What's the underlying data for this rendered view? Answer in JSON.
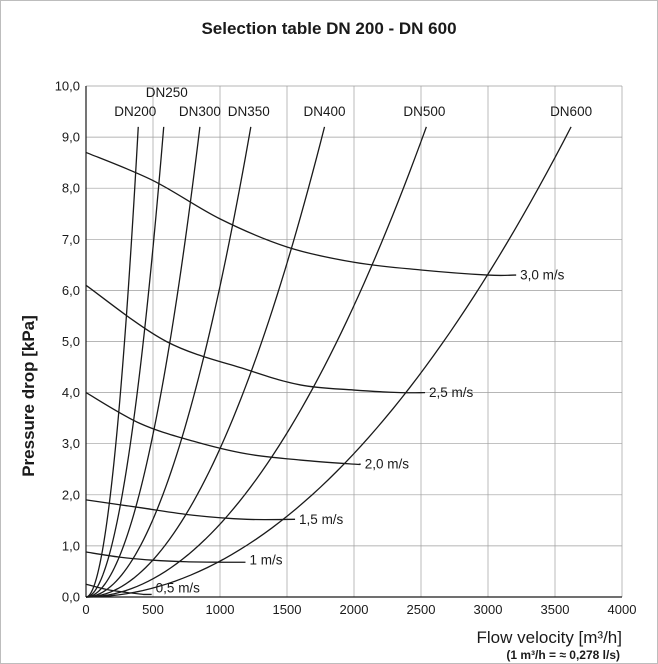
{
  "chart_data": {
    "type": "line",
    "title": "Selection table DN 200 - DN 600",
    "ylabel": "Pressure drop [kPa]",
    "xlabel": "Flow velocity [m³/h]",
    "xlabel_note": "(1 m³/h = ≈ 0,278 l/s)",
    "xlim": [
      0,
      4000
    ],
    "ylim": [
      0,
      10
    ],
    "x_ticks": [
      0,
      500,
      1000,
      1500,
      2000,
      2500,
      3000,
      3500,
      4000
    ],
    "y_ticks": [
      0,
      1,
      2,
      3,
      4,
      5,
      6,
      7,
      8,
      9,
      10
    ],
    "x_tick_labels": [
      "0",
      "500",
      "1000",
      "1500",
      "2000",
      "2500",
      "3000",
      "3500",
      "4000"
    ],
    "y_tick_labels": [
      "0,0",
      "1,0",
      "2,0",
      "3,0",
      "4,0",
      "5,0",
      "6,0",
      "7,0",
      "8,0",
      "9,0",
      "10,0"
    ],
    "grid": true,
    "pipe_series": [
      {
        "name": "DN200",
        "label": "DN200",
        "x_end": 390,
        "y_end": 9.2
      },
      {
        "name": "DN250",
        "label": "DN250",
        "x_end": 580,
        "y_end": 9.2
      },
      {
        "name": "DN300",
        "label": "DN300",
        "x_end": 850,
        "y_end": 9.2
      },
      {
        "name": "DN350",
        "label": "DN350",
        "x_end": 1230,
        "y_end": 9.2
      },
      {
        "name": "DN400",
        "label": "DN400",
        "x_end": 1780,
        "y_end": 9.2
      },
      {
        "name": "DN500",
        "label": "DN500",
        "x_end": 2540,
        "y_end": 9.2
      },
      {
        "name": "DN600",
        "label": "DN600",
        "x_end": 3620,
        "y_end": 9.2
      }
    ],
    "velocity_series": [
      {
        "name": "0,5 m/s",
        "label": "0,5 m/s",
        "x": [
          0,
          150,
          300,
          430
        ],
        "y": [
          0.25,
          0.15,
          0.09,
          0.05
        ],
        "label_x": 520,
        "label_y": 0.18
      },
      {
        "name": "1 m/s",
        "label": "1 m/s",
        "x": [
          0,
          250,
          500,
          750,
          1030
        ],
        "y": [
          0.88,
          0.78,
          0.72,
          0.69,
          0.68
        ],
        "label_x": 1220,
        "label_y": 0.72
      },
      {
        "name": "1,5 m/s",
        "label": "1,5 m/s",
        "x": [
          0,
          400,
          800,
          1200,
          1550
        ],
        "y": [
          1.9,
          1.75,
          1.6,
          1.52,
          1.52
        ],
        "label_x": 1590,
        "label_y": 1.52
      },
      {
        "name": "2,0 m/s",
        "label": "2,0 m/s",
        "x": [
          0,
          400,
          800,
          1200,
          1600,
          2000,
          2040
        ],
        "y": [
          4.0,
          3.4,
          3.05,
          2.8,
          2.68,
          2.6,
          2.6
        ],
        "label_x": 2080,
        "label_y": 2.6
      },
      {
        "name": "2,5 m/s",
        "label": "2,5 m/s",
        "x": [
          0,
          600,
          1200,
          1600,
          2000,
          2350,
          2520
        ],
        "y": [
          6.1,
          5.0,
          4.45,
          4.15,
          4.05,
          4.0,
          4.0
        ],
        "label_x": 2560,
        "label_y": 4.0
      },
      {
        "name": "3,0 m/s",
        "label": "3,0 m/s",
        "x": [
          0,
          500,
          1000,
          1500,
          2000,
          2500,
          3000,
          3200
        ],
        "y": [
          8.7,
          8.15,
          7.4,
          6.85,
          6.55,
          6.4,
          6.3,
          6.3
        ],
        "label_x": 3240,
        "label_y": 6.3
      }
    ]
  }
}
